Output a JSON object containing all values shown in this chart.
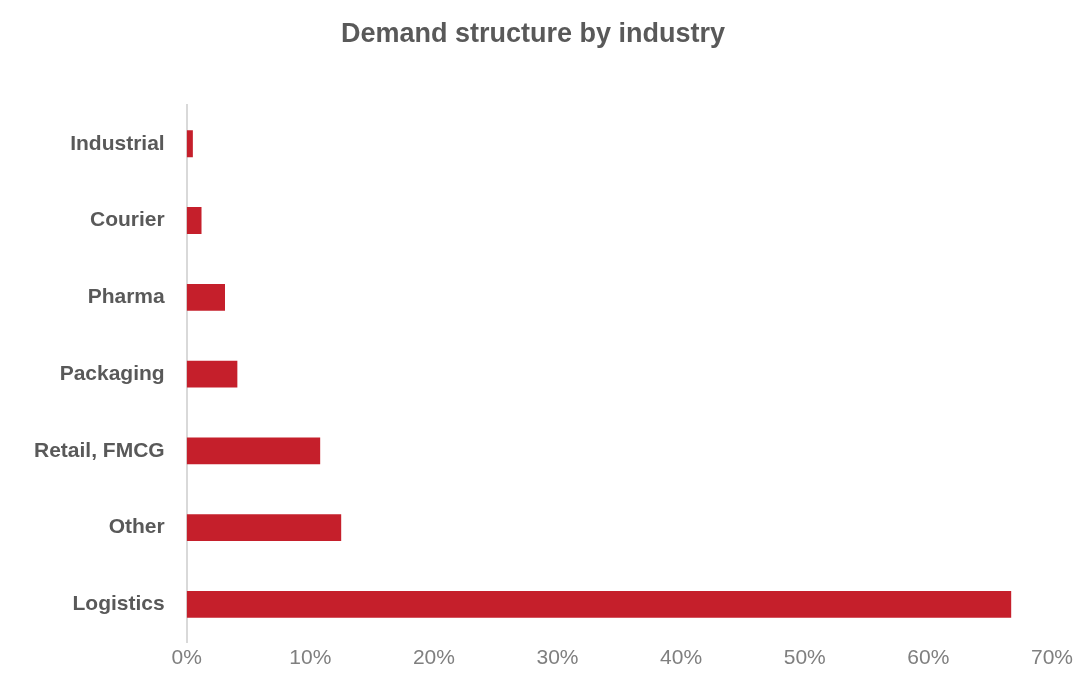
{
  "chart_data": {
    "type": "bar",
    "title": "Demand structure by industry",
    "orientation": "horizontal",
    "categories": [
      "Industrial",
      "Courier",
      "Pharma",
      "Packaging",
      "Retail, FMCG",
      "Other",
      "Logistics"
    ],
    "values": [
      0.5,
      1.2,
      3.1,
      4.1,
      10.8,
      12.5,
      66.7
    ],
    "color": "#c51f2b",
    "xlim": [
      0,
      70
    ],
    "xticks": [
      {
        "value": 0,
        "label": "0%"
      },
      {
        "value": 10,
        "label": "10%"
      },
      {
        "value": 20,
        "label": "20%"
      },
      {
        "value": 30,
        "label": "30%"
      },
      {
        "value": 40,
        "label": "40%"
      },
      {
        "value": 50,
        "label": "50%"
      },
      {
        "value": 60,
        "label": "60%"
      },
      {
        "value": 70,
        "label": "70%"
      }
    ],
    "grid": false,
    "legend": false
  }
}
